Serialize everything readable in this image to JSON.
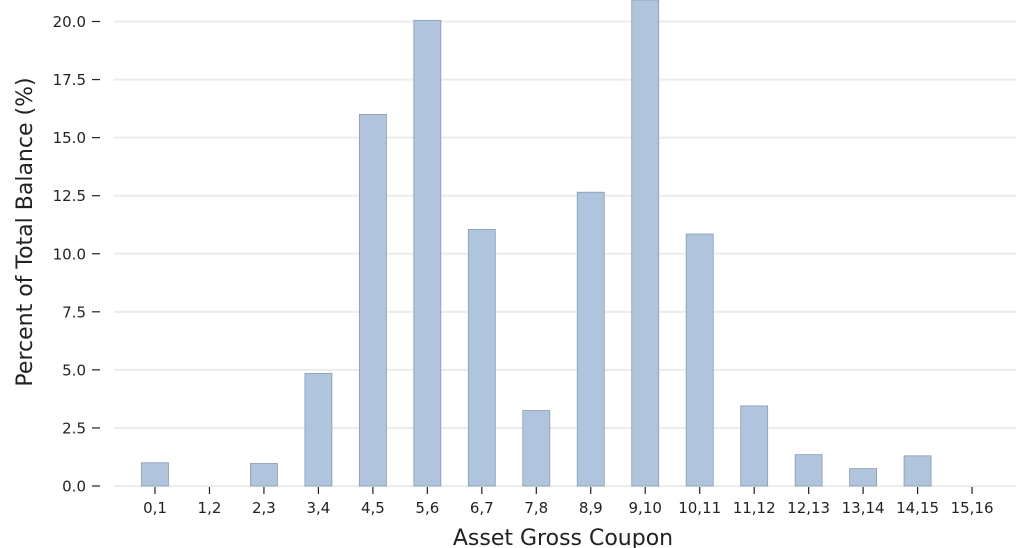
{
  "chart_data": {
    "type": "bar",
    "title": "",
    "xlabel": "Asset Gross Coupon",
    "ylabel": "Percent of Total Balance (%)",
    "categories": [
      "0,1",
      "1,2",
      "2,3",
      "3,4",
      "4,5",
      "5,6",
      "6,7",
      "7,8",
      "8,9",
      "9,10",
      "10,11",
      "11,12",
      "12,13",
      "13,14",
      "14,15",
      "15,16"
    ],
    "values": [
      1.0,
      0.0,
      0.97,
      4.85,
      16.0,
      20.05,
      11.05,
      3.25,
      12.65,
      21.5,
      10.85,
      3.45,
      1.35,
      0.75,
      1.3,
      0.0
    ],
    "yticks": [
      "0.0",
      "2.5",
      "5.0",
      "7.5",
      "10.0",
      "12.5",
      "15.0",
      "17.5",
      "20.0"
    ],
    "ylim": [
      0,
      20.9
    ],
    "grid": "horizontal",
    "legend": "none",
    "colors": {
      "bar_fill": "#b0c4de",
      "bar_edge": "#8a9bb3",
      "grid": "#ececec",
      "axis": "#222222"
    }
  }
}
